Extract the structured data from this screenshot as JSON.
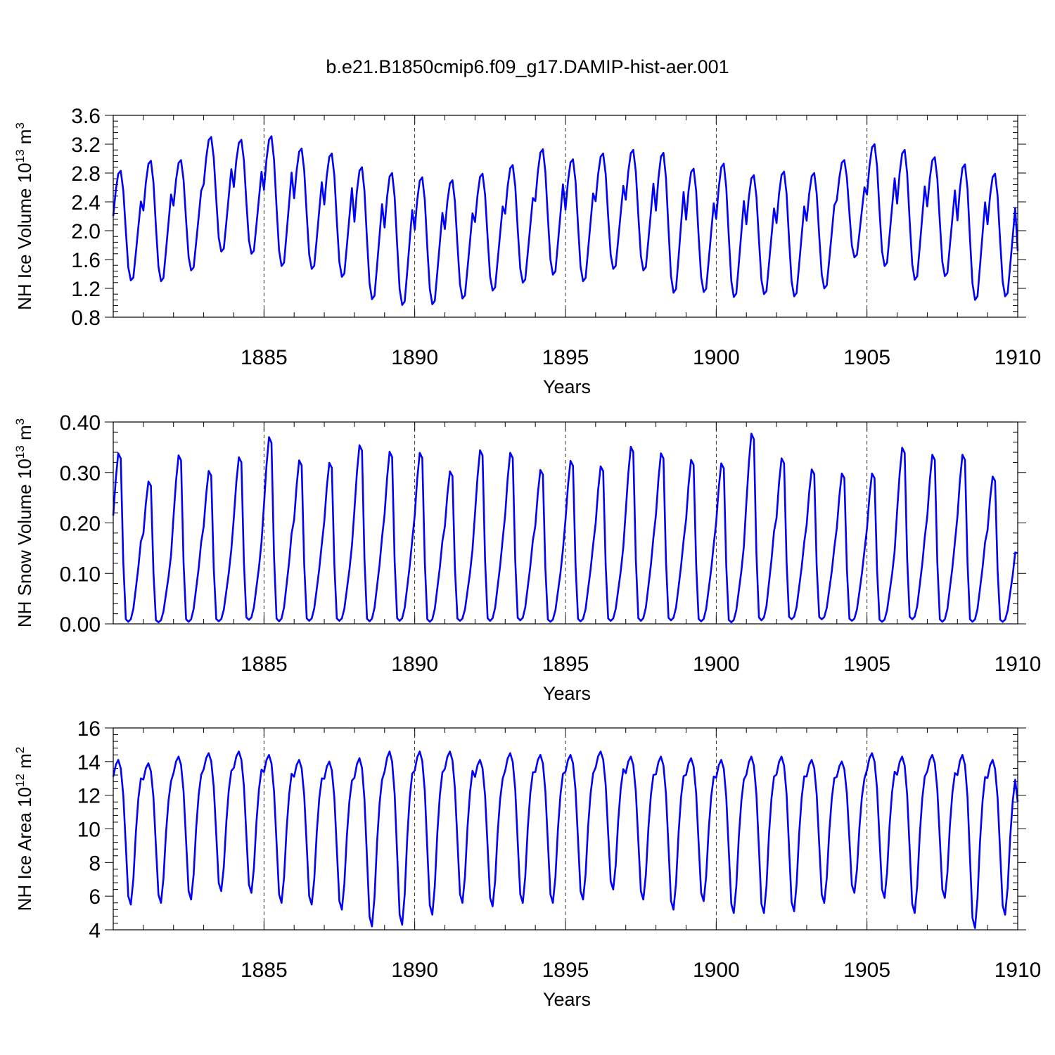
{
  "figure_title": "b.e21.B1850cmip6.f09_g17.DAMIP-hist-aer.001",
  "line_color": "#0000ff",
  "chart_data": [
    {
      "type": "line",
      "name": "nh-ice-volume",
      "ylabel_main": "NH Ice Volume 10",
      "ylabel_exp": "13",
      "ylabel_unit": " m",
      "ylabel_unit_exp": "3",
      "xlabel": "Years",
      "xlim": [
        1880.0,
        1910.0
      ],
      "ylim": [
        0.8,
        3.6
      ],
      "xticks": [
        1885,
        1890,
        1895,
        1900,
        1905,
        1910
      ],
      "yticks": [
        0.8,
        1.2,
        1.6,
        2.0,
        2.4,
        2.8,
        3.2,
        3.6
      ],
      "ytick_labels": [
        "0.8",
        "1.2",
        "1.6",
        "2.0",
        "2.4",
        "2.8",
        "3.2",
        "3.6"
      ],
      "grid": "dashed vertical lines at major x ticks",
      "series": [
        {
          "name": "NH Ice Volume",
          "monthly_profile": [
            2.2,
            2.55,
            2.78,
            2.82,
            2.55,
            2.0,
            1.5,
            1.32,
            1.36,
            1.7,
            2.05,
            2.4
          ],
          "annual_max": [
            2.83,
            2.97,
            2.98,
            3.3,
            3.26,
            3.31,
            3.14,
            3.07,
            2.88,
            2.8,
            2.74,
            2.7,
            2.79,
            2.91,
            3.13,
            2.99,
            3.07,
            3.12,
            3.08,
            2.86,
            2.93,
            2.77,
            2.82,
            2.8,
            2.98,
            3.2,
            3.12,
            3.02,
            2.92,
            2.79
          ],
          "annual_min": [
            1.31,
            1.3,
            1.45,
            1.71,
            1.68,
            1.51,
            1.47,
            1.36,
            1.05,
            0.97,
            0.98,
            1.06,
            1.17,
            1.28,
            1.39,
            1.3,
            1.47,
            1.45,
            1.14,
            1.15,
            1.08,
            1.12,
            1.09,
            1.2,
            1.63,
            1.51,
            1.32,
            1.37,
            1.04,
            1.09
          ],
          "end_value": 1.72
        }
      ]
    },
    {
      "type": "line",
      "name": "nh-snow-volume",
      "ylabel_main": "NH Snow Volume 10",
      "ylabel_exp": "13",
      "ylabel_unit": " m",
      "ylabel_unit_exp": "3",
      "xlabel": "Years",
      "xlim": [
        1880.0,
        1910.0
      ],
      "ylim": [
        0.0,
        0.4
      ],
      "xticks": [
        1885,
        1890,
        1895,
        1900,
        1905,
        1910
      ],
      "yticks": [
        0.0,
        0.1,
        0.2,
        0.3,
        0.4
      ],
      "ytick_labels": [
        "0.00",
        "0.10",
        "0.20",
        "0.30",
        "0.40"
      ],
      "grid": "dashed vertical lines at major x ticks",
      "series": [
        {
          "name": "NH Snow Volume",
          "monthly_profile": [
            0.21,
            0.28,
            0.33,
            0.32,
            0.12,
            0.01,
            0.005,
            0.01,
            0.03,
            0.07,
            0.11,
            0.16
          ],
          "annual_max": [
            0.338,
            0.282,
            0.334,
            0.303,
            0.33,
            0.37,
            0.324,
            0.319,
            0.354,
            0.341,
            0.339,
            0.302,
            0.344,
            0.339,
            0.305,
            0.323,
            0.312,
            0.351,
            0.338,
            0.325,
            0.318,
            0.377,
            0.328,
            0.306,
            0.298,
            0.298,
            0.349,
            0.335,
            0.335,
            0.292
          ],
          "annual_min": [
            0.004,
            0.003,
            0.004,
            0.005,
            0.008,
            0.005,
            0.006,
            0.006,
            0.005,
            0.006,
            0.004,
            0.006,
            0.006,
            0.007,
            0.004,
            0.005,
            0.006,
            0.006,
            0.007,
            0.005,
            0.003,
            0.007,
            0.009,
            0.009,
            0.006,
            0.004,
            0.009,
            0.004,
            0.004,
            0.004
          ],
          "end_value": 0.14
        }
      ]
    },
    {
      "type": "line",
      "name": "nh-ice-area",
      "ylabel_main": "NH Ice Area 10",
      "ylabel_exp": "12",
      "ylabel_unit": " m",
      "ylabel_unit_exp": "2",
      "xlabel": "Years",
      "xlim": [
        1880.0,
        1910.0
      ],
      "ylim": [
        4,
        16
      ],
      "xticks": [
        1885,
        1890,
        1895,
        1900,
        1905,
        1910
      ],
      "yticks": [
        4,
        6,
        8,
        10,
        12,
        14,
        16
      ],
      "ytick_labels": [
        "4",
        "6",
        "8",
        "10",
        "12",
        "14",
        "16"
      ],
      "grid": "dashed vertical lines at major x ticks",
      "series": [
        {
          "name": "NH Ice Area",
          "monthly_profile": [
            13.1,
            13.8,
            14.1,
            13.6,
            12.0,
            9.0,
            6.0,
            5.5,
            7.0,
            9.8,
            11.8,
            13.0
          ],
          "annual_max": [
            14.1,
            13.9,
            14.3,
            14.5,
            14.6,
            14.4,
            14.1,
            14.0,
            14.2,
            14.6,
            14.6,
            14.6,
            14.1,
            14.5,
            14.4,
            14.4,
            14.6,
            14.3,
            14.3,
            14.2,
            14.1,
            14.3,
            14.3,
            14.1,
            14.0,
            14.5,
            14.3,
            14.4,
            14.4,
            14.1
          ],
          "annual_min": [
            5.5,
            5.6,
            5.8,
            6.3,
            6.2,
            5.6,
            5.5,
            5.2,
            4.2,
            4.3,
            4.9,
            5.6,
            5.4,
            5.6,
            5.6,
            5.8,
            6.4,
            5.8,
            5.2,
            5.7,
            5.0,
            5.0,
            5.1,
            5.6,
            6.2,
            5.9,
            5.0,
            5.9,
            4.1,
            4.9
          ],
          "end_value": 11.6
        }
      ]
    }
  ]
}
